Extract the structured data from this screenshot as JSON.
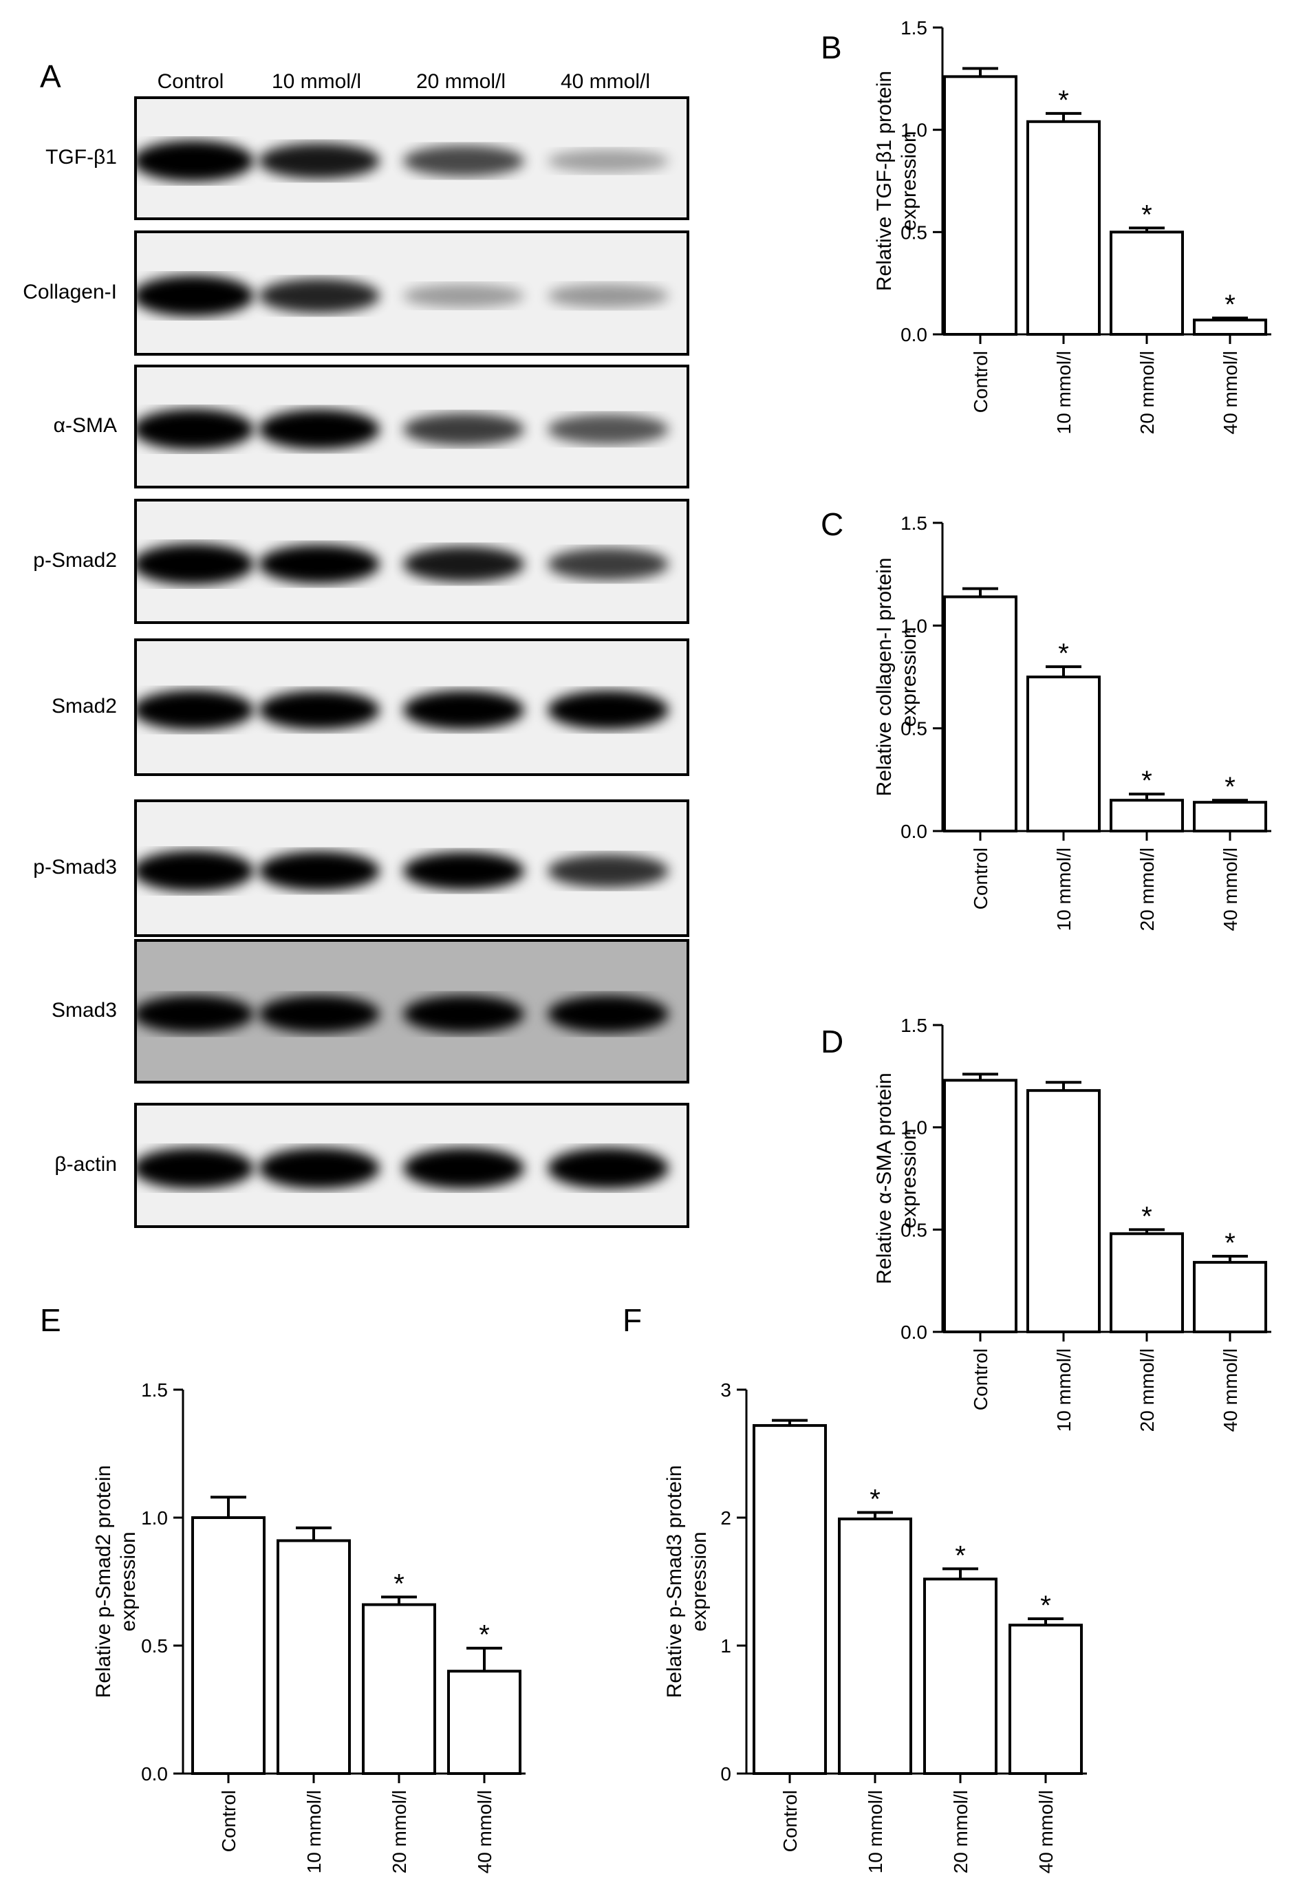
{
  "panel_A": {
    "letter": "A",
    "lanes": [
      "Control",
      "10 mmol/l",
      "20 mmol/l",
      "40 mmol/l"
    ],
    "blots": [
      {
        "label": "TGF-β1",
        "intensity": [
          1.0,
          0.75,
          0.55,
          0.18
        ]
      },
      {
        "label": "Collagen-I",
        "intensity": [
          1.0,
          0.7,
          0.2,
          0.22
        ]
      },
      {
        "label": "α-SMA",
        "intensity": [
          1.0,
          0.95,
          0.6,
          0.5
        ]
      },
      {
        "label": "p-Smad2",
        "intensity": [
          1.0,
          0.9,
          0.75,
          0.6
        ]
      },
      {
        "label": "Smad2",
        "intensity": [
          0.95,
          0.9,
          0.9,
          0.9
        ]
      },
      {
        "label": "p-Smad3",
        "intensity": [
          1.0,
          0.92,
          0.85,
          0.65
        ]
      },
      {
        "label": "Smad3",
        "intensity": [
          0.85,
          0.85,
          0.85,
          0.85
        ]
      },
      {
        "label": "β-actin",
        "intensity": [
          1.0,
          1.0,
          1.0,
          1.0
        ]
      }
    ]
  },
  "chart_data": [
    {
      "panel": "B",
      "type": "bar",
      "categories": [
        "Control",
        "10 mmol/l",
        "20 mmol/l",
        "40 mmol/l"
      ],
      "values": [
        1.26,
        1.04,
        0.5,
        0.07
      ],
      "errors": [
        0.04,
        0.04,
        0.02,
        0.01
      ],
      "significant": [
        false,
        true,
        true,
        true
      ],
      "ylabel": "Relative TGF-β1 protein expression",
      "ylim": [
        0,
        1.5
      ],
      "yticks": [
        "0.0",
        "0.5",
        "1.0",
        "1.5"
      ],
      "ytick_values": [
        0,
        0.5,
        1.0,
        1.5
      ]
    },
    {
      "panel": "C",
      "type": "bar",
      "categories": [
        "Control",
        "10 mmol/l",
        "20 mmol/l",
        "40 mmol/l"
      ],
      "values": [
        1.14,
        0.75,
        0.15,
        0.14
      ],
      "errors": [
        0.04,
        0.05,
        0.03,
        0.01
      ],
      "significant": [
        false,
        true,
        true,
        true
      ],
      "ylabel": "Relative collagen-I protein expression",
      "ylim": [
        0,
        1.5
      ],
      "yticks": [
        "0.0",
        "0.5",
        "1.0",
        "1.5"
      ],
      "ytick_values": [
        0,
        0.5,
        1.0,
        1.5
      ]
    },
    {
      "panel": "D",
      "type": "bar",
      "categories": [
        "Control",
        "10 mmol/l",
        "20 mmol/l",
        "40 mmol/l"
      ],
      "values": [
        1.23,
        1.18,
        0.48,
        0.34
      ],
      "errors": [
        0.03,
        0.04,
        0.02,
        0.03
      ],
      "significant": [
        false,
        false,
        true,
        true
      ],
      "ylabel": "Relative α-SMA protein expression",
      "ylim": [
        0,
        1.5
      ],
      "yticks": [
        "0.0",
        "0.5",
        "1.0",
        "1.5"
      ],
      "ytick_values": [
        0,
        0.5,
        1.0,
        1.5
      ]
    },
    {
      "panel": "E",
      "type": "bar",
      "categories": [
        "Control",
        "10 mmol/l",
        "20 mmol/l",
        "40 mmol/l"
      ],
      "values": [
        1.0,
        0.91,
        0.66,
        0.4
      ],
      "errors": [
        0.08,
        0.05,
        0.03,
        0.09
      ],
      "significant": [
        false,
        false,
        true,
        true
      ],
      "ylabel": "Relative p-Smad2 protein expression",
      "ylim": [
        0,
        1.5
      ],
      "yticks": [
        "0.0",
        "0.5",
        "1.0",
        "1.5"
      ],
      "ytick_values": [
        0,
        0.5,
        1.0,
        1.5
      ]
    },
    {
      "panel": "F",
      "type": "bar",
      "categories": [
        "Control",
        "10 mmol/l",
        "20 mmol/l",
        "40 mmol/l"
      ],
      "values": [
        2.72,
        1.99,
        1.52,
        1.16
      ],
      "errors": [
        0.04,
        0.05,
        0.08,
        0.05
      ],
      "significant": [
        false,
        true,
        true,
        true
      ],
      "ylabel": "Relative p-Smad3 protein expression",
      "ylim": [
        0,
        3
      ],
      "yticks": [
        "0",
        "1",
        "2",
        "3"
      ],
      "ytick_values": [
        0,
        1,
        2,
        3
      ]
    }
  ],
  "significance_marker": "*"
}
